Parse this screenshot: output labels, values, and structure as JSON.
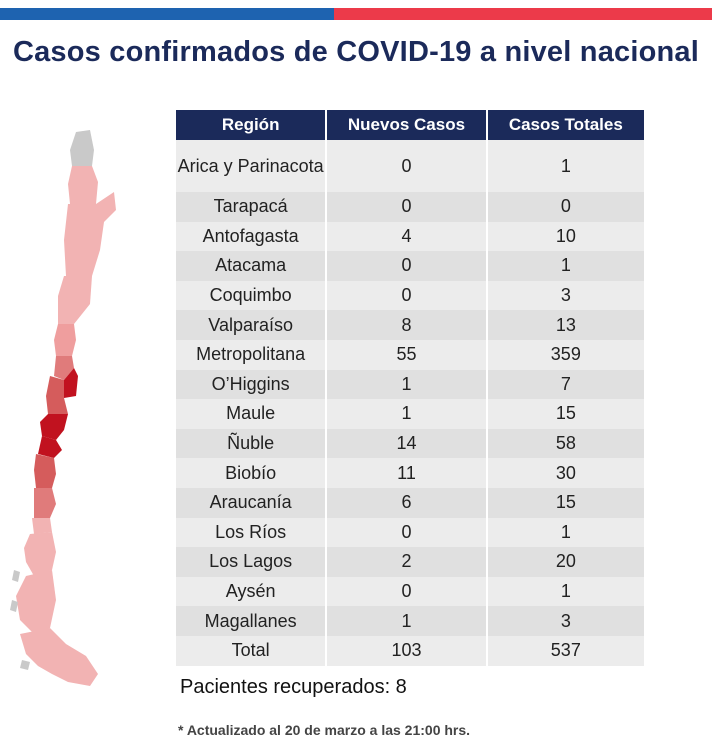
{
  "title": "Casos confirmados de COVID-19 a nivel nacional",
  "colors": {
    "header_bg": "#1b2a5a",
    "bar_blue": "#1e63b0",
    "bar_red": "#ec3a4a",
    "map_light": "#f2b3b3",
    "map_medium": "#e07b7b",
    "map_dark": "#c1121f",
    "map_none": "#c9c9c9"
  },
  "table": {
    "headers": [
      "Región",
      "Nuevos Casos",
      "Casos Totales"
    ],
    "rows": [
      {
        "region": "Arica y Parinacota",
        "nuevos": "0",
        "totales": "1"
      },
      {
        "region": "Tarapacá",
        "nuevos": "0",
        "totales": "0"
      },
      {
        "region": "Antofagasta",
        "nuevos": "4",
        "totales": "10"
      },
      {
        "region": "Atacama",
        "nuevos": "0",
        "totales": "1"
      },
      {
        "region": "Coquimbo",
        "nuevos": "0",
        "totales": "3"
      },
      {
        "region": "Valparaíso",
        "nuevos": "8",
        "totales": "13"
      },
      {
        "region": "Metropolitana",
        "nuevos": "55",
        "totales": "359"
      },
      {
        "region": "O’Higgins",
        "nuevos": "1",
        "totales": "7"
      },
      {
        "region": "Maule",
        "nuevos": "1",
        "totales": "15"
      },
      {
        "region": "Ñuble",
        "nuevos": "14",
        "totales": "58"
      },
      {
        "region": "Biobío",
        "nuevos": "11",
        "totales": "30"
      },
      {
        "region": "Araucanía",
        "nuevos": "6",
        "totales": "15"
      },
      {
        "region": "Los Ríos",
        "nuevos": "0",
        "totales": "1"
      },
      {
        "region": "Los Lagos",
        "nuevos": "2",
        "totales": "20"
      },
      {
        "region": "Aysén",
        "nuevos": "0",
        "totales": "1"
      },
      {
        "region": "Magallanes",
        "nuevos": "1",
        "totales": "3"
      }
    ],
    "total": {
      "region": "Total",
      "nuevos": "103",
      "totales": "537"
    }
  },
  "recovered": "Pacientes recuperados: 8",
  "footnote": "* Actualizado al 20 de marzo a las 21:00 hrs."
}
